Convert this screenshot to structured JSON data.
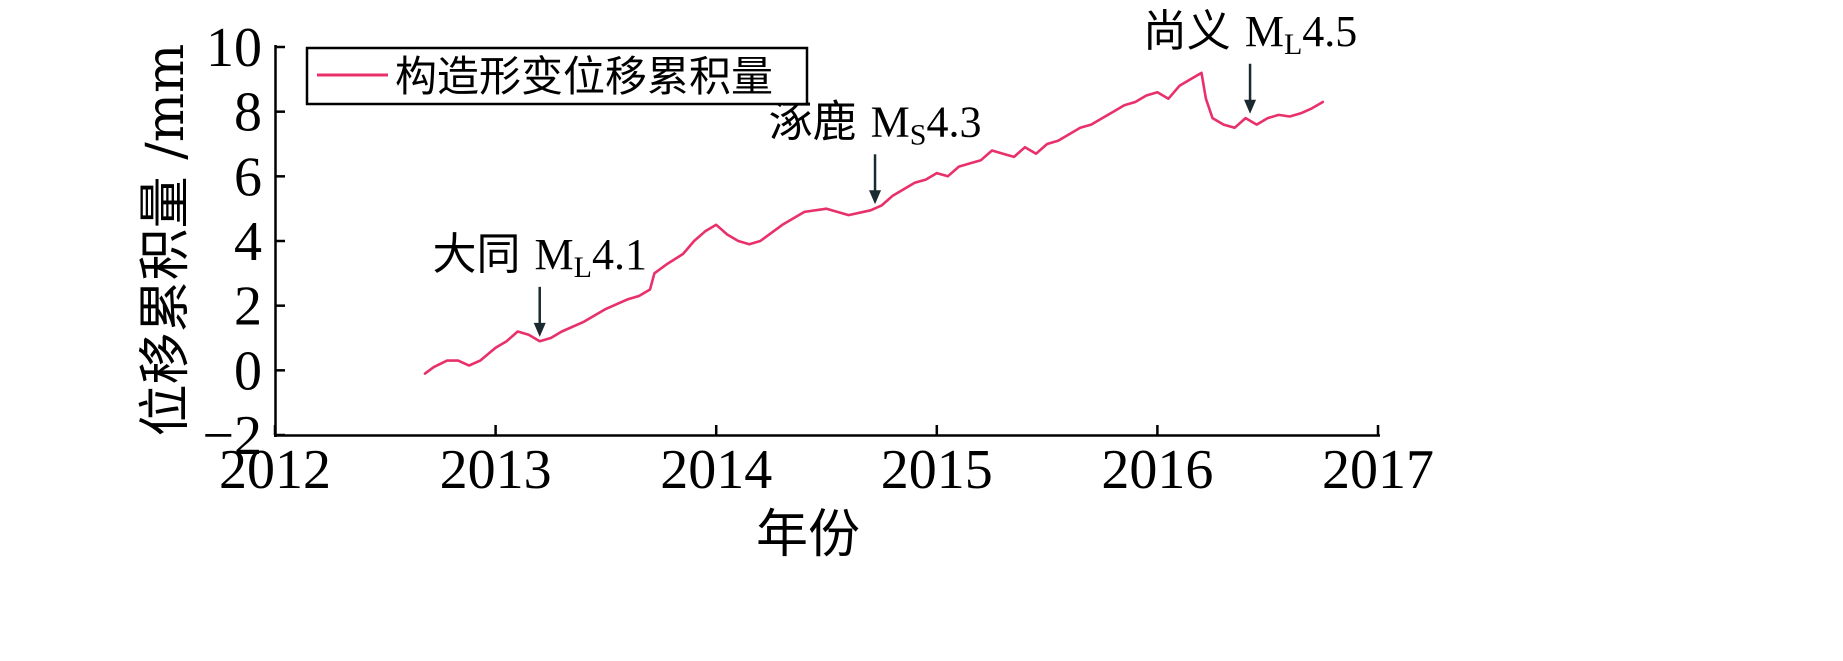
{
  "chart_data": {
    "type": "line",
    "xlabel": "年份",
    "ylabel": "位移累积量 /mm",
    "xlim": [
      2012,
      2017
    ],
    "ylim": [
      -2,
      10
    ],
    "x_ticks": [
      2012,
      2013,
      2014,
      2015,
      2016,
      2017
    ],
    "y_ticks": [
      -2,
      0,
      2,
      4,
      6,
      8,
      10
    ],
    "y_tick_labels": [
      "−2",
      "0",
      "2",
      "4",
      "6",
      "8",
      "10"
    ],
    "grid": false,
    "legend": {
      "position": "top-left"
    },
    "series": [
      {
        "name": "构造形变位移累积量",
        "color": "#e8306a",
        "x": [
          2012.68,
          2012.72,
          2012.78,
          2012.83,
          2012.88,
          2012.93,
          2013.0,
          2013.05,
          2013.1,
          2013.15,
          2013.2,
          2013.25,
          2013.3,
          2013.4,
          2013.5,
          2013.6,
          2013.65,
          2013.7,
          2013.72,
          2013.78,
          2013.85,
          2013.9,
          2013.95,
          2014.0,
          2014.05,
          2014.1,
          2014.15,
          2014.2,
          2014.3,
          2014.4,
          2014.5,
          2014.6,
          2014.7,
          2014.75,
          2014.8,
          2014.85,
          2014.9,
          2014.95,
          2015.0,
          2015.05,
          2015.1,
          2015.15,
          2015.2,
          2015.25,
          2015.3,
          2015.35,
          2015.4,
          2015.45,
          2015.5,
          2015.55,
          2015.6,
          2015.65,
          2015.7,
          2015.75,
          2015.8,
          2015.85,
          2015.9,
          2015.95,
          2016.0,
          2016.05,
          2016.1,
          2016.15,
          2016.2,
          2016.22,
          2016.25,
          2016.3,
          2016.35,
          2016.4,
          2016.45,
          2016.5,
          2016.55,
          2016.6,
          2016.65,
          2016.7,
          2016.75
        ],
        "values": [
          -0.1,
          0.1,
          0.3,
          0.3,
          0.15,
          0.3,
          0.7,
          0.9,
          1.2,
          1.1,
          0.9,
          1.0,
          1.2,
          1.5,
          1.9,
          2.2,
          2.3,
          2.5,
          3.0,
          3.3,
          3.6,
          4.0,
          4.3,
          4.5,
          4.2,
          4.0,
          3.9,
          4.0,
          4.5,
          4.9,
          5.0,
          4.8,
          4.95,
          5.1,
          5.4,
          5.6,
          5.8,
          5.9,
          6.1,
          6.0,
          6.3,
          6.4,
          6.5,
          6.8,
          6.7,
          6.6,
          6.9,
          6.7,
          7.0,
          7.1,
          7.3,
          7.5,
          7.6,
          7.8,
          8.0,
          8.2,
          8.3,
          8.5,
          8.6,
          8.4,
          8.8,
          9.0,
          9.2,
          8.4,
          7.8,
          7.6,
          7.5,
          7.8,
          7.6,
          7.8,
          7.9,
          7.85,
          7.95,
          8.1,
          8.3
        ]
      }
    ],
    "annotations": [
      {
        "cjk": "大同",
        "mag": "M",
        "sub": "L",
        "value": "4.1",
        "x": 2013.2,
        "y": 0.85
      },
      {
        "cjk": "涿鹿",
        "mag": "M",
        "sub": "S",
        "value": "4.3",
        "x": 2014.72,
        "y": 4.95
      },
      {
        "cjk": "尚义",
        "mag": "M",
        "sub": "L",
        "value": "4.5",
        "x": 2016.42,
        "y": 7.75
      }
    ]
  }
}
